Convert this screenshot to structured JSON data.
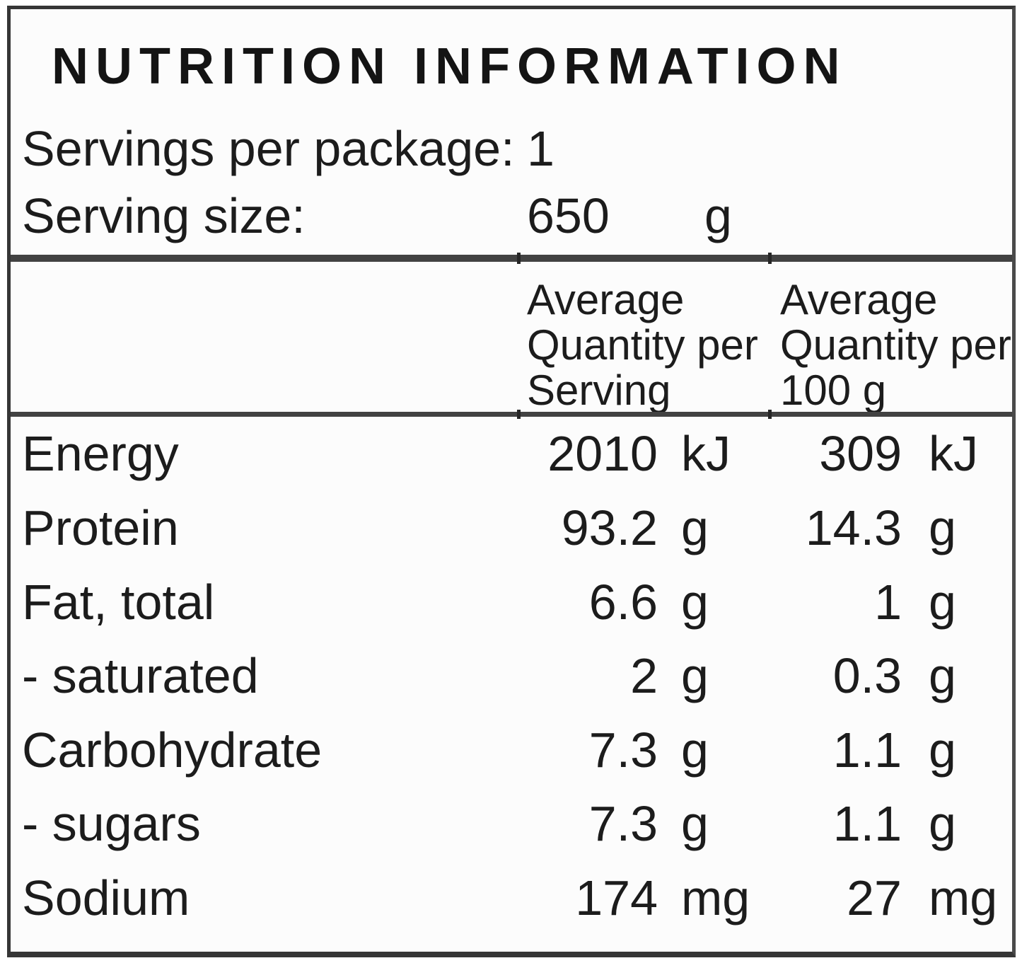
{
  "title": "NUTRITION INFORMATION",
  "servings": {
    "label": "Servings per package:",
    "value": "1"
  },
  "serving_size": {
    "label": "Serving size:",
    "value": "650",
    "unit": "g"
  },
  "table": {
    "header_per_serving": "Average\nQuantity per\nServing",
    "header_per_100g": "Average\nQuantity per\n100 g",
    "rows": [
      {
        "nutrient": "Energy",
        "per_serving": "2010",
        "per_serving_unit": "kJ",
        "per_100g": "309",
        "per_100g_unit": "kJ"
      },
      {
        "nutrient": "Protein",
        "per_serving": "93.2",
        "per_serving_unit": "g",
        "per_100g": "14.3",
        "per_100g_unit": "g"
      },
      {
        "nutrient": "Fat, total",
        "per_serving": "6.6",
        "per_serving_unit": "g",
        "per_100g": "1",
        "per_100g_unit": "g"
      },
      {
        "nutrient": "- saturated",
        "per_serving": "2",
        "per_serving_unit": "g",
        "per_100g": "0.3",
        "per_100g_unit": "g"
      },
      {
        "nutrient": "Carbohydrate",
        "per_serving": "7.3",
        "per_serving_unit": "g",
        "per_100g": "1.1",
        "per_100g_unit": "g"
      },
      {
        "nutrient": "- sugars",
        "per_serving": "7.3",
        "per_serving_unit": "g",
        "per_100g": "1.1",
        "per_100g_unit": "g"
      },
      {
        "nutrient": "Sodium",
        "per_serving": "174",
        "per_serving_unit": "mg",
        "per_100g": "27",
        "per_100g_unit": "mg"
      }
    ]
  },
  "colors": {
    "border_gray": "#424242",
    "outer_border": "#363636",
    "text_black": "#1c1c1c",
    "background": "#fcfcfc"
  }
}
